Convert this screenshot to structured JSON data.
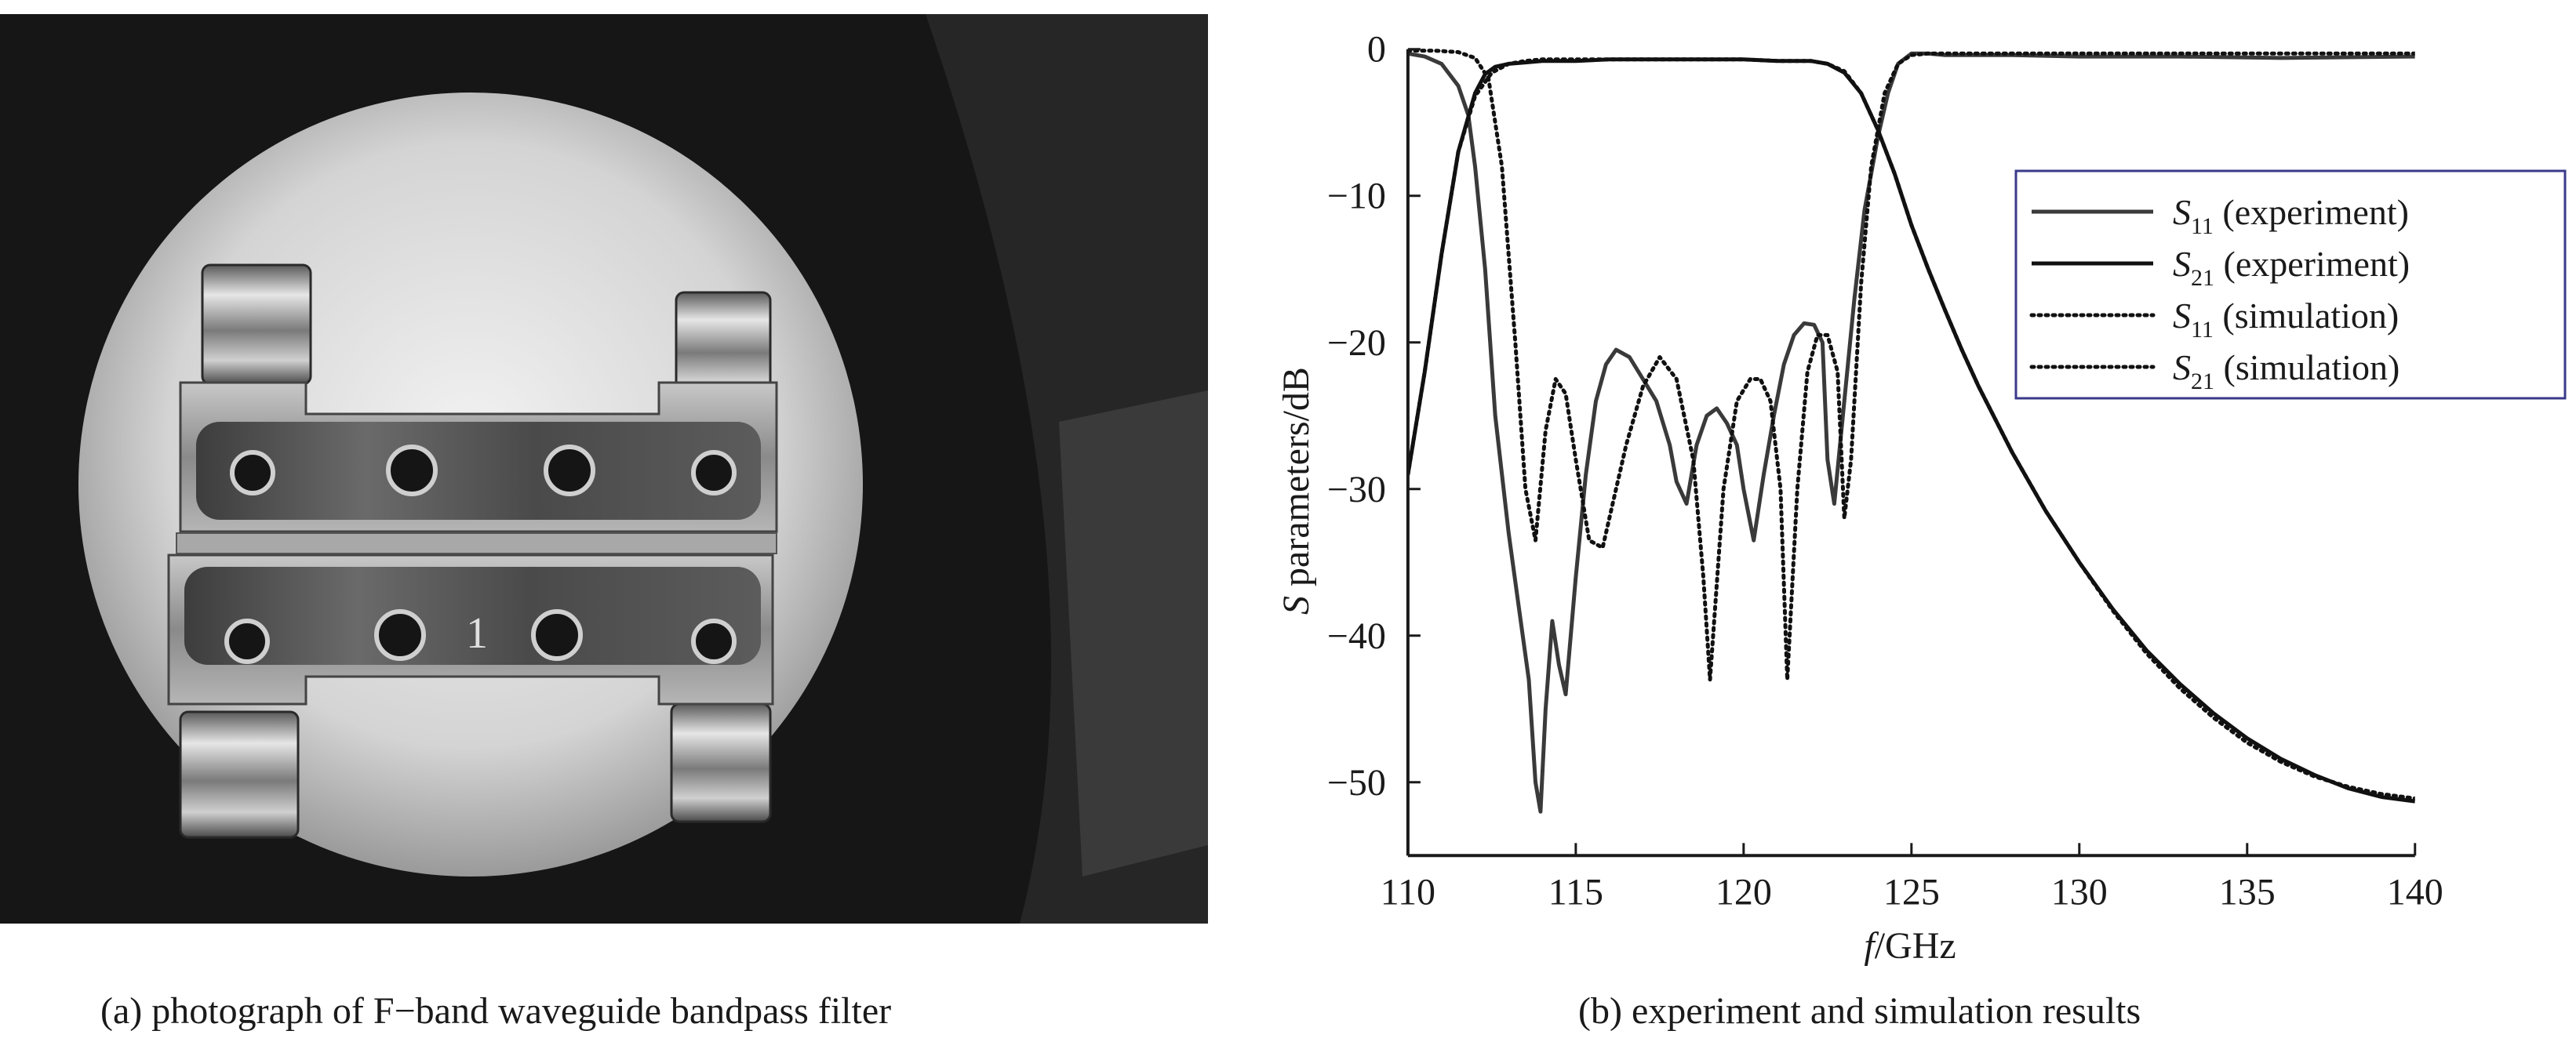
{
  "figure": {
    "caption_a": "(a) photograph of F−band waveguide bandpass filter",
    "caption_b": "(b) experiment and simulation results",
    "photo": {
      "engraved_digit": "1",
      "background_color": "#161616",
      "disc_color": "#d9d9d9",
      "metal_color": "#8e8e8e"
    }
  },
  "chart_data": {
    "type": "line",
    "xlabel_italic": "f",
    "xlabel_rest": "/GHz",
    "ylabel_italic": "S",
    "ylabel_rest": " parameters/dB",
    "xlim": [
      110,
      140
    ],
    "ylim": [
      -55,
      0
    ],
    "xticks": [
      110,
      115,
      120,
      125,
      130,
      135,
      140
    ],
    "yticks": [
      0,
      -10,
      -20,
      -30,
      -40,
      -50
    ],
    "grid": false,
    "legend_position": "top-right",
    "series": [
      {
        "name": "S11 (experiment)",
        "sym": "S",
        "sub": "11",
        "suffix": " (experiment)",
        "style": "solid",
        "color": "#3a3a3a",
        "x": [
          110,
          110.5,
          111,
          111.5,
          111.8,
          112,
          112.3,
          112.6,
          113,
          113.3,
          113.6,
          113.8,
          113.95,
          114.1,
          114.3,
          114.5,
          114.7,
          115,
          115.3,
          115.6,
          115.9,
          116.2,
          116.6,
          117,
          117.4,
          117.8,
          118,
          118.3,
          118.6,
          118.9,
          119.2,
          119.5,
          119.8,
          120,
          120.3,
          120.6,
          120.9,
          121.2,
          121.5,
          121.8,
          122.1,
          122.35,
          122.5,
          122.7,
          123,
          123.3,
          123.6,
          124,
          124.3,
          124.6,
          125,
          125.5,
          126,
          128,
          130,
          133,
          136,
          140
        ],
        "y": [
          -0.3,
          -0.5,
          -1.0,
          -2.5,
          -4.5,
          -8,
          -15,
          -25,
          -33,
          -38,
          -43,
          -50,
          -52,
          -45,
          -39,
          -42,
          -44,
          -36,
          -29,
          -24,
          -21.5,
          -20.5,
          -21,
          -22.5,
          -24,
          -27,
          -29.5,
          -31,
          -27,
          -25,
          -24.5,
          -25.5,
          -27,
          -30,
          -33.5,
          -29,
          -25,
          -21.5,
          -19.5,
          -18.7,
          -18.8,
          -20,
          -28,
          -31,
          -24,
          -17,
          -11,
          -6,
          -3,
          -1,
          -0.3,
          -0.3,
          -0.4,
          -0.4,
          -0.5,
          -0.5,
          -0.6,
          -0.5
        ]
      },
      {
        "name": "S21 (experiment)",
        "sym": "S",
        "sub": "21",
        "suffix": " (experiment)",
        "style": "solid",
        "color": "#111111",
        "x": [
          110,
          110.5,
          111,
          111.5,
          112,
          112.3,
          112.6,
          113,
          113.5,
          114,
          115,
          116,
          118,
          120,
          121,
          122,
          122.5,
          123,
          123.5,
          124,
          124.5,
          125,
          125.5,
          126,
          126.5,
          127,
          128,
          129,
          130,
          131,
          132,
          133,
          134,
          135,
          136,
          137,
          138,
          139,
          140
        ],
        "y": [
          -29,
          -22,
          -14,
          -7,
          -3,
          -1.7,
          -1.2,
          -1.0,
          -0.9,
          -0.8,
          -0.8,
          -0.7,
          -0.7,
          -0.7,
          -0.8,
          -0.8,
          -1.0,
          -1.6,
          -3,
          -5.5,
          -8.5,
          -12,
          -15,
          -17.8,
          -20.5,
          -23,
          -27.5,
          -31.5,
          -35,
          -38.2,
          -41,
          -43.3,
          -45.3,
          -47,
          -48.4,
          -49.5,
          -50.4,
          -51,
          -51.3
        ]
      },
      {
        "name": "S11 (simulation)",
        "sym": "S",
        "sub": "11",
        "suffix": " (simulation)",
        "style": "dotted",
        "color": "#111111",
        "x": [
          110,
          110.8,
          111.5,
          112,
          112.4,
          112.8,
          113.2,
          113.5,
          113.8,
          114.1,
          114.4,
          114.7,
          115,
          115.4,
          115.8,
          116.1,
          116.5,
          117,
          117.5,
          118,
          118.5,
          118.8,
          119,
          119.4,
          119.8,
          120.2,
          120.5,
          120.8,
          121.1,
          121.3,
          121.6,
          121.9,
          122.2,
          122.5,
          122.8,
          123,
          123.2,
          123.5,
          123.8,
          124.2,
          124.6,
          125,
          125.5,
          126,
          128,
          130,
          135,
          140
        ],
        "y": [
          -0.1,
          -0.1,
          -0.2,
          -0.6,
          -2,
          -8,
          -20,
          -30,
          -33.5,
          -26,
          -22.5,
          -23.5,
          -28,
          -33.5,
          -34,
          -31,
          -27,
          -23,
          -21,
          -22.5,
          -28,
          -36,
          -43,
          -30,
          -24,
          -22.5,
          -22.5,
          -24,
          -30,
          -43,
          -30,
          -22,
          -19.5,
          -19.5,
          -22,
          -32,
          -28,
          -16,
          -8,
          -3,
          -1,
          -0.4,
          -0.3,
          -0.3,
          -0.3,
          -0.3,
          -0.3,
          -0.3
        ]
      },
      {
        "name": "S21 (simulation)",
        "sym": "S",
        "sub": "21",
        "suffix": " (simulation)",
        "style": "dotted",
        "color": "#111111",
        "x": [
          110,
          110.5,
          111,
          111.5,
          112,
          112.5,
          113,
          113.5,
          114,
          116,
          118,
          120,
          121,
          122,
          122.5,
          123,
          123.5,
          124,
          124.5,
          125,
          125.5,
          126,
          126.5,
          127,
          128,
          129,
          130,
          131,
          132,
          133,
          134,
          135,
          136,
          137,
          138,
          139,
          140
        ],
        "y": [
          -29,
          -22,
          -14,
          -7,
          -3.2,
          -1.6,
          -1.0,
          -0.8,
          -0.7,
          -0.7,
          -0.7,
          -0.7,
          -0.8,
          -0.8,
          -1.0,
          -1.5,
          -3,
          -5.5,
          -8.5,
          -12,
          -15,
          -17.8,
          -20.5,
          -23,
          -27.5,
          -31.5,
          -35,
          -38.3,
          -41.2,
          -43.6,
          -45.6,
          -47.3,
          -48.6,
          -49.6,
          -50.3,
          -50.8,
          -51.1
        ]
      }
    ]
  }
}
